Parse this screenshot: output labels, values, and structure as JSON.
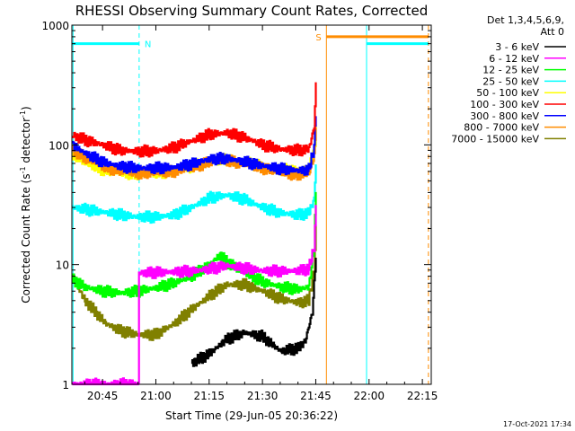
{
  "chart_data": {
    "type": "line",
    "title": "RHESSI Observing Summary Count Rates, Corrected",
    "xlabel": "Start Time (29-Jun-05 20:36:22)",
    "ylabel": "Corrected Count Rate (s",
    "ylabel_sup1": "-1",
    "ylabel_mid": " detector",
    "ylabel_sup2": "-1",
    "ylabel_end": ")",
    "yscale": "log",
    "ylim": [
      1,
      1000
    ],
    "xlim_min": [
      36.37,
      137.5
    ],
    "x_ticks": [
      {
        "t": 45,
        "label": "20:45"
      },
      {
        "t": 60,
        "label": "21:00"
      },
      {
        "t": 75,
        "label": "21:15"
      },
      {
        "t": 90,
        "label": "21:30"
      },
      {
        "t": 105,
        "label": "21:45"
      },
      {
        "t": 120,
        "label": "22:00"
      },
      {
        "t": 135,
        "label": "22:15"
      }
    ],
    "y_ticks": [
      {
        "v": 1,
        "label": "1"
      },
      {
        "v": 10,
        "label": "10"
      },
      {
        "v": 100,
        "label": "100"
      },
      {
        "v": 1000,
        "label": "1000"
      }
    ],
    "legend_header": [
      "Det 1,3,4,5,6,9,",
      "Att 0"
    ],
    "series": [
      {
        "name": "3 - 6 keV",
        "color": "#000000",
        "x": [
          70,
          75,
          80,
          85,
          90,
          95,
          100,
          102,
          104,
          105
        ],
        "y": [
          1.5,
          1.8,
          2.4,
          2.7,
          2.5,
          1.9,
          2.0,
          2.3,
          4.0,
          12
        ]
      },
      {
        "name": "6 - 12 keV",
        "color": "#ff00ff",
        "x": [
          36.5,
          55,
          55.1,
          60,
          70,
          75,
          80,
          85,
          90,
          95,
          100,
          103,
          104.5,
          105
        ],
        "y": [
          1.0,
          1.0,
          8.5,
          8.6,
          8.8,
          9.2,
          9.8,
          9.3,
          8.9,
          8.8,
          8.9,
          9.2,
          14,
          30
        ]
      },
      {
        "name": "12 - 25 keV",
        "color": "#00ff00",
        "x": [
          36.5,
          40,
          45,
          50,
          55,
          60,
          65,
          70,
          75,
          78,
          80,
          85,
          90,
          95,
          100,
          103,
          104.5,
          105
        ],
        "y": [
          7.5,
          6.5,
          6.0,
          5.8,
          6.0,
          6.4,
          7.0,
          8.0,
          10.0,
          12.0,
          10.5,
          8.5,
          7.2,
          6.5,
          6.2,
          6.5,
          14,
          40
        ]
      },
      {
        "name": "25 - 50 keV",
        "color": "#00ffff",
        "x": [
          36.5,
          40,
          45,
          50,
          55,
          60,
          65,
          70,
          75,
          80,
          85,
          90,
          95,
          100,
          103,
          104.5,
          105
        ],
        "y": [
          30,
          29,
          27.5,
          26,
          25,
          25,
          26,
          30,
          36,
          38,
          35,
          30,
          27,
          26,
          27,
          35,
          70
        ]
      },
      {
        "name": "50 - 100 keV",
        "color": "#ffff00",
        "x": [
          36.5,
          40,
          45,
          50,
          55,
          60,
          65,
          70,
          75,
          80,
          85,
          90,
          95,
          100,
          103,
          104.5,
          105
        ],
        "y": [
          85,
          70,
          62,
          58,
          57,
          58,
          60,
          66,
          74,
          76,
          72,
          66,
          62,
          62,
          63,
          85,
          140
        ]
      },
      {
        "name": "100 - 300 keV",
        "color": "#ff0000",
        "x": [
          36.5,
          40,
          45,
          50,
          55,
          60,
          65,
          70,
          75,
          80,
          85,
          90,
          95,
          100,
          103,
          104.5,
          105
        ],
        "y": [
          120,
          110,
          100,
          90,
          88,
          89,
          95,
          108,
          122,
          126,
          115,
          100,
          92,
          90,
          92,
          140,
          320
        ]
      },
      {
        "name": "300 - 800 keV",
        "color": "#0000ff",
        "x": [
          36.5,
          40,
          45,
          50,
          55,
          60,
          65,
          70,
          75,
          80,
          85,
          90,
          95,
          100,
          103,
          104.5,
          105
        ],
        "y": [
          100,
          85,
          72,
          66,
          64,
          64,
          65,
          69,
          76,
          77,
          72,
          67,
          63,
          61,
          62,
          95,
          190
        ]
      },
      {
        "name": "800 - 7000 keV",
        "color": "#ff8c00",
        "x": [
          36.5,
          40,
          45,
          50,
          55,
          60,
          65,
          70,
          75,
          80,
          85,
          90,
          95,
          100,
          103,
          104.5,
          105
        ],
        "y": [
          90,
          78,
          66,
          60,
          58,
          58,
          60,
          64,
          72,
          74,
          69,
          64,
          59,
          56,
          57,
          80,
          150
        ]
      },
      {
        "name": "7000 - 15000 keV",
        "color": "#808000",
        "x": [
          36.5,
          38,
          40,
          43,
          46,
          50,
          55,
          60,
          65,
          70,
          75,
          80,
          85,
          90,
          95,
          100,
          103,
          104.5,
          105
        ],
        "y": [
          8.0,
          6.5,
          5.0,
          4.0,
          3.2,
          2.8,
          2.6,
          2.6,
          3.2,
          4.2,
          5.5,
          6.8,
          6.8,
          6.0,
          5.2,
          4.8,
          5.0,
          9,
          20
        ]
      }
    ],
    "annotations": {
      "flag_N_label": "N",
      "flag_S_label": "S",
      "night_bars": [
        [
          36.5,
          55.3
        ],
        [
          119.3,
          136.7
        ]
      ],
      "saa_bar": [
        108,
        136.7
      ],
      "night_bar_value": 700,
      "saa_bar_value": 800,
      "cyan_vlines": [
        36.7,
        55.3,
        119.3
      ],
      "orange_vlines": [
        108,
        136.7
      ]
    },
    "timestamp": "17-Oct-2021 17:34"
  }
}
